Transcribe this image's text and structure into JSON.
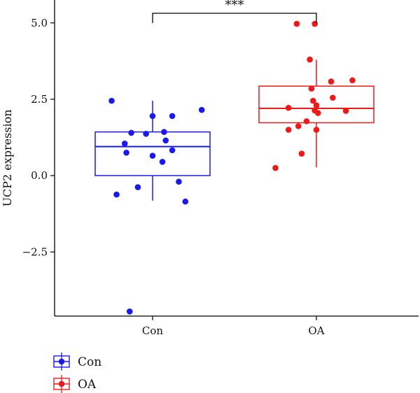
{
  "chart_data": {
    "type": "box",
    "title": "",
    "xlabel": "",
    "ylabel": "UCP2 expression",
    "ylim": [
      -4.6,
      5.75
    ],
    "yticks": [
      -2.5,
      0.0,
      2.5,
      5.0
    ],
    "ytick_labels": [
      "−2.5",
      "0.0",
      "2.5",
      "5.0"
    ],
    "categories": [
      "Con",
      "OA"
    ],
    "significance": {
      "label": "***",
      "between": [
        "Con",
        "OA"
      ]
    },
    "legend": {
      "position": "bottom-left",
      "entries": [
        "Con",
        "OA"
      ]
    },
    "series": [
      {
        "name": "Con",
        "color": "#1a1aee",
        "box": {
          "q1": 0.0,
          "median": 0.95,
          "q3": 1.43,
          "whisker_low": -0.82,
          "whisker_high": 2.45
        },
        "points": [
          [
            -0.25,
            2.45
          ],
          [
            0.0,
            1.95
          ],
          [
            0.3,
            2.15
          ],
          [
            0.12,
            1.95
          ],
          [
            -0.13,
            1.4
          ],
          [
            -0.04,
            1.37
          ],
          [
            0.07,
            1.43
          ],
          [
            -0.17,
            1.05
          ],
          [
            0.08,
            1.15
          ],
          [
            -0.16,
            0.75
          ],
          [
            0.12,
            0.83
          ],
          [
            0.0,
            0.65
          ],
          [
            0.06,
            0.45
          ],
          [
            0.16,
            -0.2
          ],
          [
            -0.09,
            -0.38
          ],
          [
            -0.22,
            -0.62
          ],
          [
            0.2,
            -0.85
          ],
          [
            -0.14,
            -4.45
          ]
        ]
      },
      {
        "name": "OA",
        "color": "#ee1a1a",
        "box": {
          "q1": 1.73,
          "median": 2.2,
          "q3": 2.93,
          "whisker_low": 0.27,
          "whisker_high": 3.8
        },
        "points": [
          [
            -0.12,
            4.97
          ],
          [
            -0.01,
            4.97
          ],
          [
            -0.04,
            3.8
          ],
          [
            0.22,
            3.12
          ],
          [
            0.09,
            3.08
          ],
          [
            -0.03,
            2.85
          ],
          [
            0.1,
            2.55
          ],
          [
            -0.02,
            2.45
          ],
          [
            0.0,
            2.3
          ],
          [
            -0.17,
            2.22
          ],
          [
            -0.01,
            2.13
          ],
          [
            0.01,
            2.05
          ],
          [
            0.18,
            2.12
          ],
          [
            -0.06,
            1.78
          ],
          [
            -0.11,
            1.62
          ],
          [
            -0.17,
            1.5
          ],
          [
            0.0,
            1.5
          ],
          [
            -0.09,
            0.72
          ],
          [
            -0.25,
            0.25
          ]
        ]
      }
    ]
  }
}
